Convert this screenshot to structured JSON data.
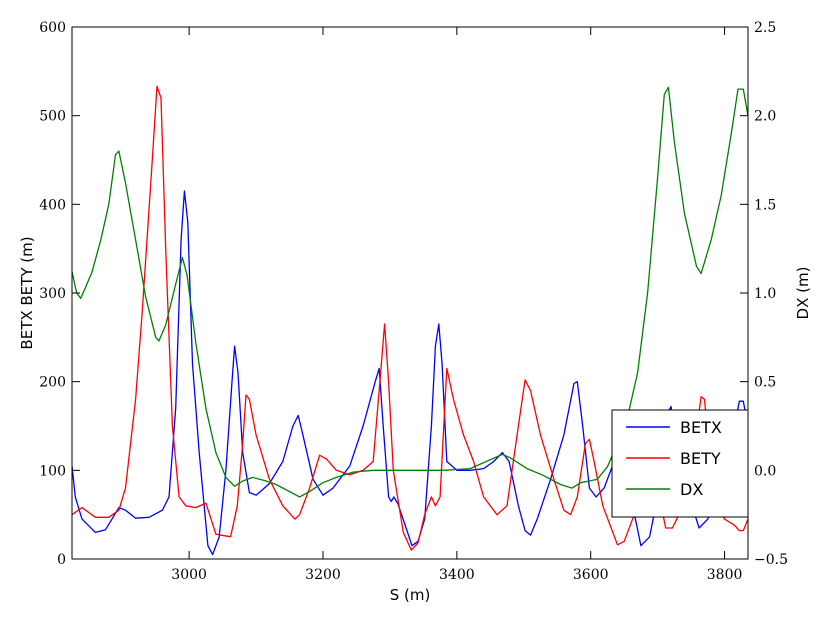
{
  "chart_data": {
    "type": "line",
    "xlabel": "S (m)",
    "ylabel_left": "BETX BETY (m)",
    "ylabel_right": "DX (m)",
    "xlim": [
      2825,
      3835
    ],
    "ylim_left": [
      0,
      600
    ],
    "ylim_right": [
      -0.5,
      2.5
    ],
    "xticks": [
      3000,
      3200,
      3400,
      3600,
      3800
    ],
    "yticks_left": [
      0,
      100,
      200,
      300,
      400,
      500,
      600
    ],
    "yticks_right": [
      -0.5,
      0.0,
      0.5,
      1.0,
      1.5,
      2.0,
      2.5
    ],
    "ytick_labels_left": [
      "0",
      "100",
      "200",
      "300",
      "400",
      "500",
      "600"
    ],
    "ytick_labels_right": [
      "−0.5",
      "0.0",
      "0.5",
      "1.0",
      "1.5",
      "2.0",
      "2.5"
    ],
    "xtick_labels": [
      "3000",
      "3200",
      "3400",
      "3600",
      "3800"
    ],
    "legend_position": "lower-right",
    "grid": false,
    "series": [
      {
        "name": "BETX",
        "axis": "left",
        "color": "#0000ff",
        "points": [
          [
            2825,
            105
          ],
          [
            2830,
            70
          ],
          [
            2840,
            45
          ],
          [
            2860,
            30
          ],
          [
            2875,
            33
          ],
          [
            2895,
            58
          ],
          [
            2905,
            55
          ],
          [
            2920,
            46
          ],
          [
            2940,
            47
          ],
          [
            2960,
            55
          ],
          [
            2970,
            70
          ],
          [
            2980,
            170
          ],
          [
            2988,
            360
          ],
          [
            2993,
            415
          ],
          [
            2998,
            380
          ],
          [
            3005,
            220
          ],
          [
            3015,
            120
          ],
          [
            3028,
            15
          ],
          [
            3035,
            5
          ],
          [
            3045,
            25
          ],
          [
            3055,
            100
          ],
          [
            3064,
            200
          ],
          [
            3068,
            240
          ],
          [
            3073,
            210
          ],
          [
            3080,
            120
          ],
          [
            3090,
            75
          ],
          [
            3100,
            72
          ],
          [
            3120,
            85
          ],
          [
            3140,
            110
          ],
          [
            3155,
            150
          ],
          [
            3163,
            162
          ],
          [
            3170,
            140
          ],
          [
            3185,
            90
          ],
          [
            3200,
            72
          ],
          [
            3215,
            80
          ],
          [
            3240,
            105
          ],
          [
            3260,
            150
          ],
          [
            3278,
            200
          ],
          [
            3284,
            215
          ],
          [
            3290,
            150
          ],
          [
            3298,
            70
          ],
          [
            3302,
            65
          ],
          [
            3306,
            70
          ],
          [
            3312,
            62
          ],
          [
            3322,
            40
          ],
          [
            3333,
            15
          ],
          [
            3342,
            20
          ],
          [
            3352,
            45
          ],
          [
            3362,
            150
          ],
          [
            3368,
            240
          ],
          [
            3373,
            265
          ],
          [
            3378,
            220
          ],
          [
            3385,
            110
          ],
          [
            3400,
            100
          ],
          [
            3420,
            100
          ],
          [
            3440,
            102
          ],
          [
            3455,
            110
          ],
          [
            3468,
            120
          ],
          [
            3478,
            110
          ],
          [
            3492,
            60
          ],
          [
            3502,
            32
          ],
          [
            3510,
            27
          ],
          [
            3520,
            45
          ],
          [
            3540,
            90
          ],
          [
            3560,
            140
          ],
          [
            3575,
            198
          ],
          [
            3580,
            200
          ],
          [
            3588,
            150
          ],
          [
            3598,
            80
          ],
          [
            3608,
            70
          ],
          [
            3620,
            80
          ],
          [
            3635,
            110
          ],
          [
            3645,
            130
          ],
          [
            3660,
            70
          ],
          [
            3675,
            15
          ],
          [
            3688,
            25
          ],
          [
            3700,
            70
          ],
          [
            3715,
            165
          ],
          [
            3720,
            172
          ],
          [
            3730,
            125
          ],
          [
            3745,
            75
          ],
          [
            3762,
            35
          ],
          [
            3775,
            45
          ],
          [
            3795,
            90
          ],
          [
            3810,
            130
          ],
          [
            3822,
            178
          ],
          [
            3828,
            178
          ],
          [
            3835,
            150
          ]
        ]
      },
      {
        "name": "BETY",
        "axis": "left",
        "color": "#ff0000",
        "points": [
          [
            2825,
            50
          ],
          [
            2840,
            58
          ],
          [
            2860,
            47
          ],
          [
            2880,
            47
          ],
          [
            2895,
            55
          ],
          [
            2905,
            80
          ],
          [
            2920,
            180
          ],
          [
            2930,
            280
          ],
          [
            2945,
            450
          ],
          [
            2952,
            533
          ],
          [
            2958,
            520
          ],
          [
            2965,
            350
          ],
          [
            2975,
            150
          ],
          [
            2985,
            70
          ],
          [
            2995,
            60
          ],
          [
            3010,
            58
          ],
          [
            3025,
            63
          ],
          [
            3040,
            28
          ],
          [
            3062,
            25
          ],
          [
            3072,
            60
          ],
          [
            3080,
            130
          ],
          [
            3085,
            185
          ],
          [
            3090,
            180
          ],
          [
            3100,
            140
          ],
          [
            3120,
            90
          ],
          [
            3140,
            60
          ],
          [
            3158,
            45
          ],
          [
            3165,
            50
          ],
          [
            3180,
            80
          ],
          [
            3195,
            117
          ],
          [
            3205,
            113
          ],
          [
            3220,
            100
          ],
          [
            3240,
            95
          ],
          [
            3260,
            100
          ],
          [
            3275,
            110
          ],
          [
            3285,
            200
          ],
          [
            3292,
            265
          ],
          [
            3298,
            200
          ],
          [
            3305,
            100
          ],
          [
            3320,
            30
          ],
          [
            3332,
            10
          ],
          [
            3342,
            18
          ],
          [
            3352,
            50
          ],
          [
            3362,
            70
          ],
          [
            3368,
            60
          ],
          [
            3375,
            70
          ],
          [
            3385,
            215
          ],
          [
            3395,
            180
          ],
          [
            3410,
            140
          ],
          [
            3425,
            110
          ],
          [
            3440,
            70
          ],
          [
            3460,
            50
          ],
          [
            3475,
            60
          ],
          [
            3490,
            140
          ],
          [
            3502,
            202
          ],
          [
            3510,
            190
          ],
          [
            3525,
            140
          ],
          [
            3545,
            90
          ],
          [
            3560,
            55
          ],
          [
            3570,
            50
          ],
          [
            3580,
            70
          ],
          [
            3592,
            130
          ],
          [
            3598,
            135
          ],
          [
            3605,
            110
          ],
          [
            3618,
            60
          ],
          [
            3628,
            40
          ],
          [
            3640,
            16
          ],
          [
            3650,
            20
          ],
          [
            3670,
            60
          ],
          [
            3685,
            100
          ],
          [
            3700,
            80
          ],
          [
            3712,
            35
          ],
          [
            3722,
            35
          ],
          [
            3735,
            55
          ],
          [
            3752,
            110
          ],
          [
            3765,
            183
          ],
          [
            3770,
            180
          ],
          [
            3780,
            100
          ],
          [
            3790,
            60
          ],
          [
            3800,
            45
          ],
          [
            3815,
            38
          ],
          [
            3822,
            32
          ],
          [
            3828,
            32
          ],
          [
            3835,
            45
          ]
        ]
      },
      {
        "name": "DX",
        "axis": "right",
        "color": "#008000",
        "points": [
          [
            2825,
            1.12
          ],
          [
            2832,
            1.0
          ],
          [
            2838,
            0.97
          ],
          [
            2845,
            1.03
          ],
          [
            2855,
            1.12
          ],
          [
            2868,
            1.3
          ],
          [
            2880,
            1.5
          ],
          [
            2890,
            1.78
          ],
          [
            2895,
            1.8
          ],
          [
            2905,
            1.62
          ],
          [
            2920,
            1.3
          ],
          [
            2935,
            0.98
          ],
          [
            2950,
            0.75
          ],
          [
            2955,
            0.73
          ],
          [
            2965,
            0.82
          ],
          [
            2980,
            1.05
          ],
          [
            2990,
            1.2
          ],
          [
            2997,
            1.1
          ],
          [
            3010,
            0.72
          ],
          [
            3025,
            0.35
          ],
          [
            3040,
            0.1
          ],
          [
            3055,
            -0.04
          ],
          [
            3068,
            -0.09
          ],
          [
            3080,
            -0.06
          ],
          [
            3095,
            -0.04
          ],
          [
            3115,
            -0.06
          ],
          [
            3130,
            -0.08
          ],
          [
            3150,
            -0.12
          ],
          [
            3165,
            -0.15
          ],
          [
            3180,
            -0.12
          ],
          [
            3200,
            -0.07
          ],
          [
            3220,
            -0.04
          ],
          [
            3245,
            -0.01
          ],
          [
            3275,
            0.0
          ],
          [
            3330,
            0.0
          ],
          [
            3380,
            0.0
          ],
          [
            3420,
            0.01
          ],
          [
            3450,
            0.06
          ],
          [
            3468,
            0.09
          ],
          [
            3480,
            0.07
          ],
          [
            3505,
            0.01
          ],
          [
            3530,
            -0.03
          ],
          [
            3555,
            -0.08
          ],
          [
            3572,
            -0.1
          ],
          [
            3585,
            -0.07
          ],
          [
            3598,
            -0.06
          ],
          [
            3610,
            -0.05
          ],
          [
            3625,
            0.02
          ],
          [
            3640,
            0.15
          ],
          [
            3655,
            0.3
          ],
          [
            3670,
            0.55
          ],
          [
            3685,
            1.0
          ],
          [
            3700,
            1.65
          ],
          [
            3710,
            2.12
          ],
          [
            3716,
            2.16
          ],
          [
            3725,
            1.85
          ],
          [
            3740,
            1.45
          ],
          [
            3758,
            1.15
          ],
          [
            3765,
            1.11
          ],
          [
            3780,
            1.3
          ],
          [
            3795,
            1.55
          ],
          [
            3810,
            1.9
          ],
          [
            3820,
            2.15
          ],
          [
            3828,
            2.15
          ],
          [
            3835,
            2.0
          ]
        ]
      }
    ]
  }
}
